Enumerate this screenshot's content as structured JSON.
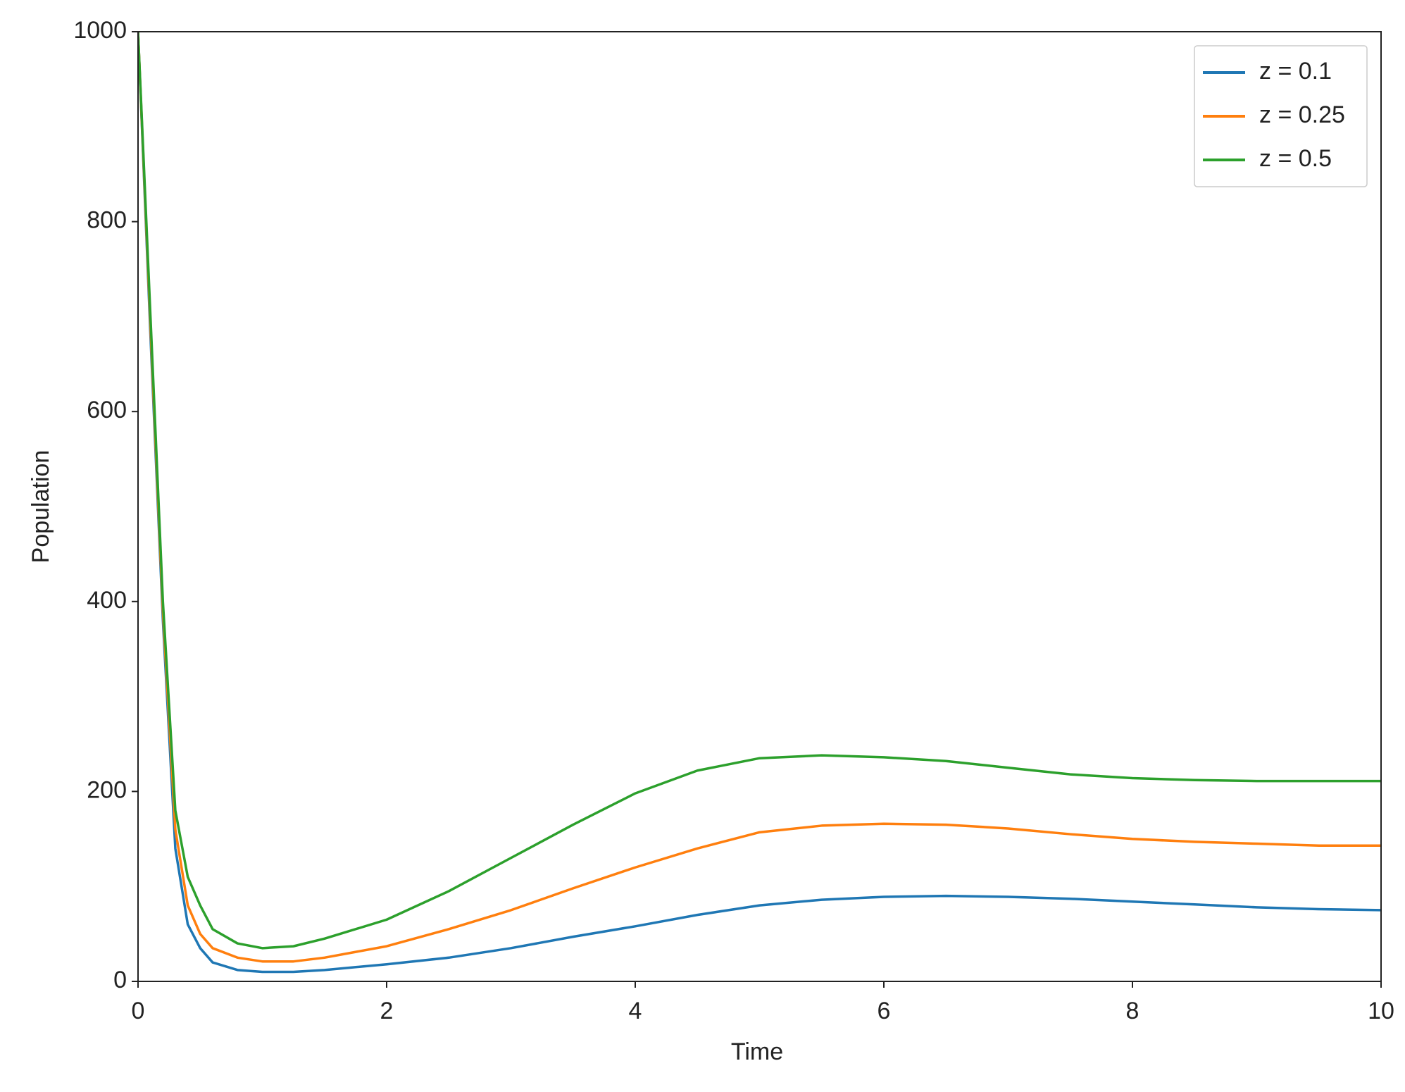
{
  "chart_data": {
    "type": "line",
    "x_label": "Time",
    "y_label": "Population",
    "x": [
      0,
      0.1,
      0.2,
      0.3,
      0.4,
      0.5,
      0.6,
      0.8,
      1.0,
      1.25,
      1.5,
      2,
      2.5,
      3,
      3.5,
      4,
      4.5,
      5,
      5.5,
      6,
      6.5,
      7,
      7.5,
      8,
      8.5,
      9,
      9.5,
      10
    ],
    "series": [
      {
        "name": "z = 0.1",
        "color": "#1f77b4",
        "values": [
          1000,
          680,
          380,
          140,
          60,
          35,
          20,
          12,
          10,
          10,
          12,
          18,
          25,
          35,
          47,
          58,
          70,
          80,
          86,
          89,
          90,
          89,
          87,
          84,
          81,
          78,
          76,
          75
        ]
      },
      {
        "name": "z = 0.25",
        "color": "#ff7f0e",
        "values": [
          1000,
          690,
          390,
          160,
          80,
          50,
          35,
          25,
          21,
          21,
          25,
          37,
          55,
          75,
          98,
          120,
          140,
          157,
          164,
          166,
          165,
          161,
          155,
          150,
          147,
          145,
          143,
          143
        ]
      },
      {
        "name": "z = 0.5",
        "color": "#2ca02c",
        "values": [
          1000,
          700,
          400,
          180,
          110,
          80,
          55,
          40,
          35,
          37,
          45,
          65,
          95,
          130,
          165,
          198,
          222,
          235,
          238,
          236,
          232,
          225,
          218,
          214,
          212,
          211,
          211,
          211
        ]
      }
    ],
    "xlim": [
      0,
      10
    ],
    "xticks": [
      0,
      2,
      4,
      6,
      8,
      10
    ],
    "ylim": [
      0,
      1000
    ],
    "yticks": [
      0,
      200,
      400,
      600,
      800,
      1000
    ],
    "grid": false,
    "legend": "upper right"
  }
}
